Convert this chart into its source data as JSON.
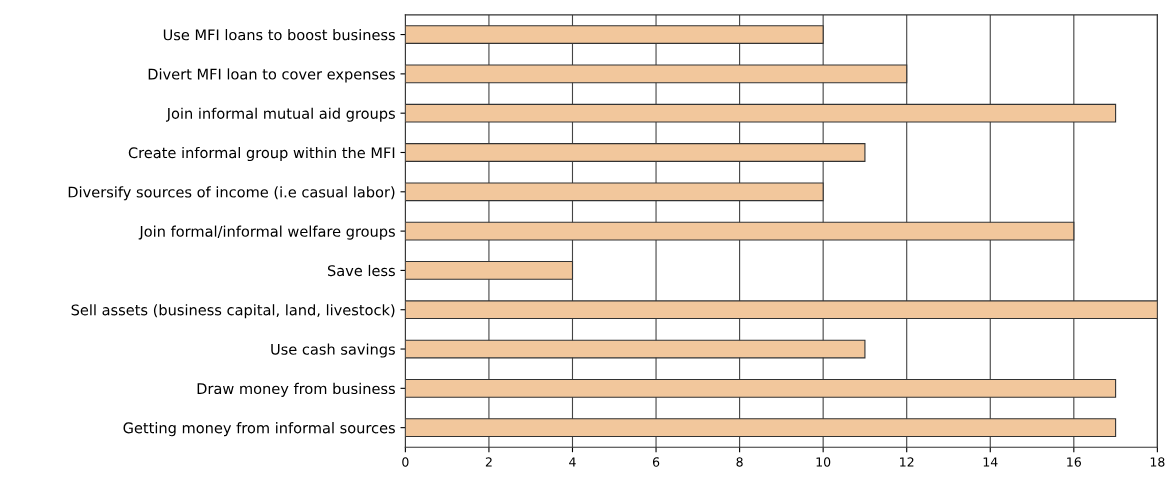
{
  "chart_data": {
    "type": "bar",
    "orientation": "horizontal",
    "categories": [
      "Use MFI loans to boost business",
      "Divert MFI loan to cover expenses",
      "Join informal mutual aid groups",
      "Create informal group within the MFI",
      "Diversify sources of income (i.e casual labor)",
      "Join formal/informal welfare groups",
      "Save less",
      "Sell assets (business capital, land, livestock)",
      "Use cash savings",
      "Draw money from business",
      "Getting money from informal sources"
    ],
    "values": [
      10,
      12,
      17,
      11,
      10,
      16,
      4,
      18,
      11,
      17,
      17
    ],
    "color": "#f2c79c",
    "xlim": [
      0,
      18
    ],
    "xticks": [
      0,
      2,
      4,
      6,
      8,
      10,
      12,
      14,
      16,
      18
    ],
    "grid": "x",
    "legend": false
  }
}
